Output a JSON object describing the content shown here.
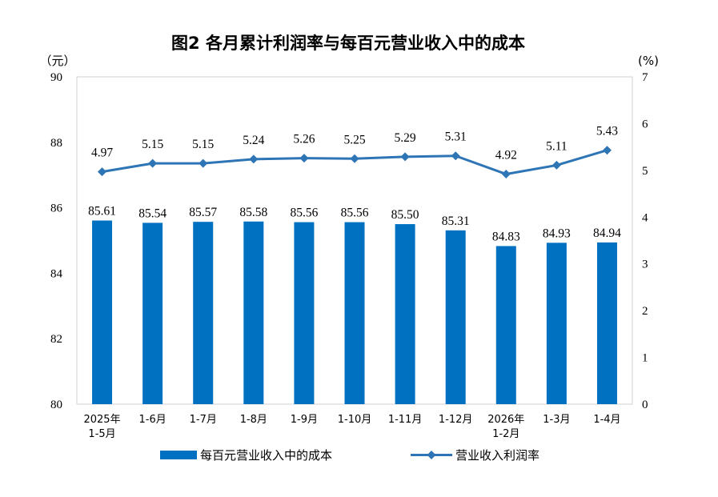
{
  "chart_data": {
    "type": "bar+line",
    "title": "图2 各月累计利润率与每百元营业收入中的成本",
    "left_axis_unit": "（元）",
    "right_axis_unit": "(%)",
    "categories": [
      [
        "2025年",
        "1-5月"
      ],
      [
        "1-6月"
      ],
      [
        "1-7月"
      ],
      [
        "1-8月"
      ],
      [
        "1-9月"
      ],
      [
        "1-10月"
      ],
      [
        "1-11月"
      ],
      [
        "1-12月"
      ],
      [
        "2026年",
        "1-2月"
      ],
      [
        "1-3月"
      ],
      [
        "1-4月"
      ]
    ],
    "left_axis": {
      "ylim": [
        80,
        90
      ],
      "ticks": [
        "80",
        "82",
        "84",
        "86",
        "88",
        "90"
      ]
    },
    "right_axis": {
      "ylim": [
        0,
        7
      ],
      "ticks": [
        "0",
        "1",
        "2",
        "3",
        "4",
        "5",
        "6",
        "7"
      ]
    },
    "series": [
      {
        "name": "每百元营业收入中的成本",
        "kind": "bar",
        "axis": "left",
        "color": "#0070C0",
        "values": [
          85.61,
          85.54,
          85.57,
          85.58,
          85.56,
          85.56,
          85.5,
          85.31,
          84.83,
          84.93,
          84.94
        ],
        "labels": [
          "85.61",
          "85.54",
          "85.57",
          "85.58",
          "85.56",
          "85.56",
          "85.50",
          "85.31",
          "84.83",
          "84.93",
          "84.94"
        ]
      },
      {
        "name": "营业收入利润率",
        "kind": "line",
        "axis": "right",
        "color": "#2E75B6",
        "marker": "diamond",
        "values": [
          4.97,
          5.15,
          5.15,
          5.24,
          5.26,
          5.25,
          5.29,
          5.31,
          4.92,
          5.11,
          5.43
        ],
        "labels": [
          "4.97",
          "5.15",
          "5.15",
          "5.24",
          "5.26",
          "5.25",
          "5.29",
          "5.31",
          "4.92",
          "5.11",
          "5.43"
        ]
      }
    ],
    "grid": false,
    "legend_position": "bottom"
  }
}
